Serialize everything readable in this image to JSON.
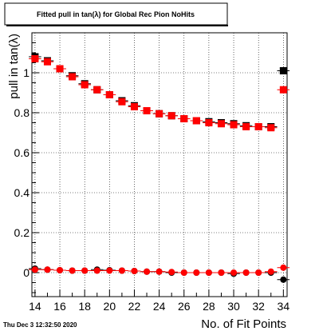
{
  "chart_data": {
    "type": "scatter",
    "title": "Fitted pull in tan(λ) for Global Rec Pion NoHits",
    "xlabel": "No. of Fit Points",
    "ylabel": "pull in tan(λ)",
    "xlim": [
      13.75,
      34.3
    ],
    "ylim": [
      -0.12,
      1.2
    ],
    "x_ticks": [
      14,
      16,
      18,
      20,
      22,
      24,
      26,
      28,
      30,
      32,
      34
    ],
    "y_ticks": [
      0,
      0.2,
      0.4,
      0.6,
      0.8,
      1
    ],
    "grid": true,
    "timestamp": "Thu Dec  3 12:32:50 2020",
    "colors": {
      "black": "#000000",
      "red": "#ff0000"
    },
    "series": [
      {
        "color": "black",
        "marker": "square",
        "x": [
          14,
          15,
          16,
          17,
          18,
          19,
          20,
          21,
          22,
          23,
          24,
          25,
          26,
          27,
          28,
          29,
          30,
          31,
          32,
          33,
          34
        ],
        "y": [
          1.08,
          1.06,
          1.02,
          0.985,
          0.945,
          0.915,
          0.89,
          0.86,
          0.835,
          0.81,
          0.795,
          0.785,
          0.77,
          0.76,
          0.755,
          0.75,
          0.745,
          0.735,
          0.73,
          0.73,
          1.01
        ]
      },
      {
        "color": "red",
        "marker": "square",
        "x": [
          14,
          15,
          16,
          17,
          18,
          19,
          20,
          21,
          22,
          23,
          24,
          25,
          26,
          27,
          28,
          29,
          30,
          31,
          32,
          33,
          34
        ],
        "y": [
          1.07,
          1.055,
          1.02,
          0.98,
          0.94,
          0.915,
          0.89,
          0.855,
          0.83,
          0.81,
          0.795,
          0.785,
          0.77,
          0.76,
          0.75,
          0.745,
          0.74,
          0.73,
          0.73,
          0.725,
          0.915
        ]
      },
      {
        "color": "black",
        "marker": "circle",
        "x": [
          14,
          15,
          16,
          17,
          18,
          19,
          20,
          21,
          22,
          23,
          24,
          25,
          26,
          27,
          28,
          29,
          30,
          31,
          32,
          33,
          34
        ],
        "y": [
          0.02,
          0.015,
          0.012,
          0.01,
          0.01,
          0.015,
          0.012,
          0.01,
          0.008,
          0.005,
          0.005,
          0.0,
          0.0,
          0.0,
          0.0,
          0.0,
          -0.005,
          0.0,
          0.0,
          0.0,
          -0.035
        ]
      },
      {
        "color": "red",
        "marker": "circle",
        "x": [
          14,
          15,
          16,
          17,
          18,
          19,
          20,
          21,
          22,
          23,
          24,
          25,
          26,
          27,
          28,
          29,
          30,
          31,
          32,
          33,
          34
        ],
        "y": [
          0.015,
          0.015,
          0.012,
          0.01,
          0.01,
          0.01,
          0.01,
          0.01,
          0.008,
          0.005,
          0.005,
          0.003,
          0.0,
          0.0,
          0.0,
          0.0,
          0.0,
          0.0,
          0.0,
          0.005,
          0.025
        ]
      }
    ]
  }
}
